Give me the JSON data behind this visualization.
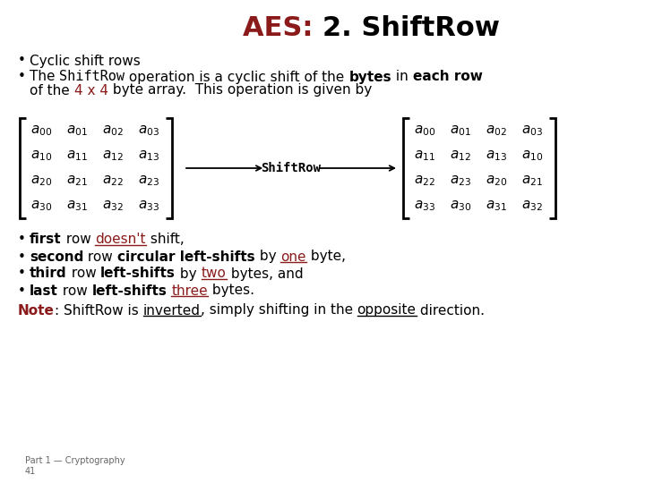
{
  "title_aes": "AES: ",
  "title_rest": "2. ShiftRow",
  "title_aes_color": "#8B1A1A",
  "title_rest_color": "#000000",
  "title_fontsize": 22,
  "body_fontsize": 11,
  "matrix_fontsize": 11,
  "left_matrix": [
    [
      "a_{00}",
      "a_{01}",
      "a_{02}",
      "a_{03}"
    ],
    [
      "a_{10}",
      "a_{11}",
      "a_{12}",
      "a_{13}"
    ],
    [
      "a_{20}",
      "a_{21}",
      "a_{22}",
      "a_{23}"
    ],
    [
      "a_{30}",
      "a_{31}",
      "a_{32}",
      "a_{33}"
    ]
  ],
  "right_matrix": [
    [
      "a_{00}",
      "a_{01}",
      "a_{02}",
      "a_{03}"
    ],
    [
      "a_{11}",
      "a_{12}",
      "a_{13}",
      "a_{10}"
    ],
    [
      "a_{22}",
      "a_{23}",
      "a_{20}",
      "a_{21}"
    ],
    [
      "a_{33}",
      "a_{30}",
      "a_{31}",
      "a_{32}"
    ]
  ],
  "bullets_bottom": [
    [
      {
        "text": "first",
        "bold": true,
        "color": "#000000",
        "underline": false
      },
      {
        "text": " row ",
        "bold": false,
        "color": "#000000",
        "underline": false
      },
      {
        "text": "doesn't",
        "bold": false,
        "color": "#8B1A1A",
        "underline": true
      },
      {
        "text": " shift,",
        "bold": false,
        "color": "#000000",
        "underline": false
      }
    ],
    [
      {
        "text": "second",
        "bold": true,
        "color": "#000000",
        "underline": false
      },
      {
        "text": " row ",
        "bold": false,
        "color": "#000000",
        "underline": false
      },
      {
        "text": "circular left-shifts",
        "bold": true,
        "color": "#000000",
        "underline": false
      },
      {
        "text": " by ",
        "bold": false,
        "color": "#000000",
        "underline": false
      },
      {
        "text": "one",
        "bold": false,
        "color": "#8B1A1A",
        "underline": true
      },
      {
        "text": " byte,",
        "bold": false,
        "color": "#000000",
        "underline": false
      }
    ],
    [
      {
        "text": "third",
        "bold": true,
        "color": "#000000",
        "underline": false
      },
      {
        "text": " row ",
        "bold": false,
        "color": "#000000",
        "underline": false
      },
      {
        "text": "left-shifts",
        "bold": true,
        "color": "#000000",
        "underline": false
      },
      {
        "text": " by ",
        "bold": false,
        "color": "#000000",
        "underline": false
      },
      {
        "text": "two",
        "bold": false,
        "color": "#8B1A1A",
        "underline": true
      },
      {
        "text": " bytes, and",
        "bold": false,
        "color": "#000000",
        "underline": false
      }
    ],
    [
      {
        "text": "last",
        "bold": true,
        "color": "#000000",
        "underline": false
      },
      {
        "text": " row ",
        "bold": false,
        "color": "#000000",
        "underline": false
      },
      {
        "text": "left-shifts",
        "bold": true,
        "color": "#000000",
        "underline": false
      },
      {
        "text": " ",
        "bold": false,
        "color": "#000000",
        "underline": false
      },
      {
        "text": "three",
        "bold": false,
        "color": "#8B1A1A",
        "underline": true
      },
      {
        "text": " bytes.",
        "bold": false,
        "color": "#000000",
        "underline": false
      }
    ]
  ],
  "note_parts": [
    {
      "text": "Note",
      "bold": true,
      "color": "#8B1A1A",
      "underline": false
    },
    {
      "text": ": ShiftRow is ",
      "bold": false,
      "color": "#000000",
      "underline": false
    },
    {
      "text": "inverted",
      "bold": false,
      "color": "#000000",
      "underline": true
    },
    {
      "text": ", simply shifting in the ",
      "bold": false,
      "color": "#000000",
      "underline": false
    },
    {
      "text": "opposite",
      "bold": false,
      "color": "#000000",
      "underline": true
    },
    {
      "text": " direction.",
      "bold": false,
      "color": "#000000",
      "underline": false
    }
  ],
  "bg_color": "#ffffff"
}
